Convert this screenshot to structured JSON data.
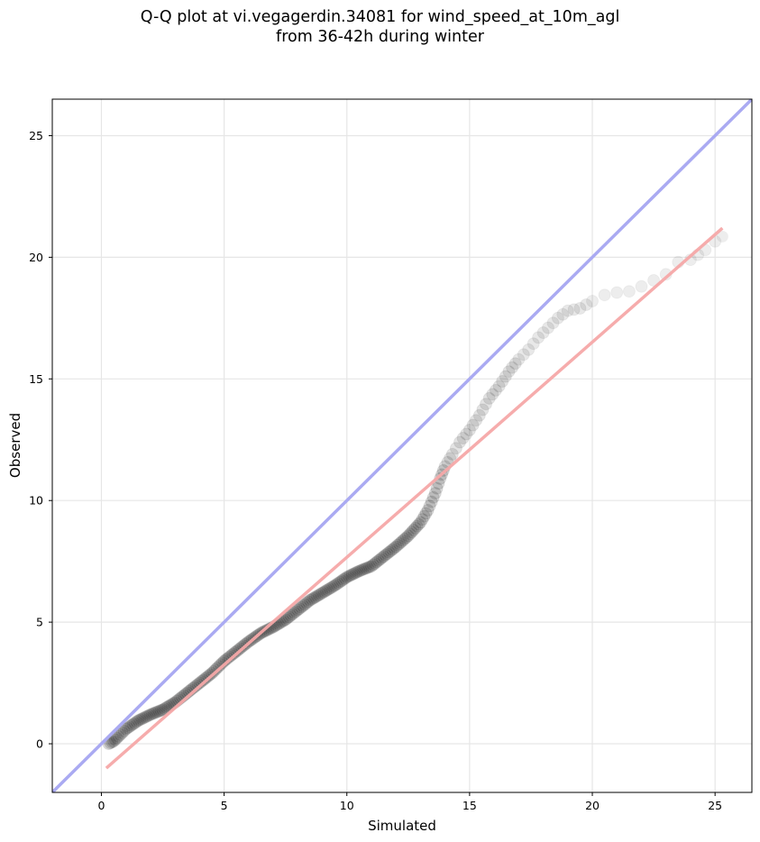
{
  "chart_data": {
    "type": "scatter",
    "title_lines": [
      "Q-Q plot at vi.vegagerdin.34081 for wind_speed_at_10m_agl",
      "from 36-42h during winter"
    ],
    "xlabel": "Simulated",
    "ylabel": "Observed",
    "xlim": [
      -2,
      26.5
    ],
    "ylim": [
      -2,
      26.5
    ],
    "xticks": [
      0,
      5,
      10,
      15,
      20,
      25
    ],
    "yticks": [
      0,
      5,
      10,
      15,
      20,
      25
    ],
    "grid": true,
    "colors": {
      "identity_line": "#aaaaf2",
      "fit_line": "#f5a8a8",
      "points": "#000000"
    },
    "identity_line": {
      "x": [
        -2,
        26.5
      ],
      "y": [
        -2,
        26.5
      ]
    },
    "fit_line": {
      "x": [
        0.2,
        25.3
      ],
      "y": [
        -1.0,
        21.2
      ]
    },
    "quantile_curve": {
      "x": [
        0.3,
        0.5,
        0.7,
        1.0,
        1.5,
        2.0,
        2.5,
        3.0,
        3.5,
        4.0,
        4.5,
        5.0,
        5.5,
        6.0,
        6.5,
        7.0,
        7.5,
        8.0,
        8.5,
        9.0,
        9.5,
        10.0,
        10.5,
        11.0,
        11.5,
        12.0,
        12.5,
        13.0,
        13.3,
        13.6,
        13.8,
        14.0,
        14.3,
        14.6,
        15.0,
        15.4,
        15.8,
        16.2,
        16.6,
        17.0,
        17.4,
        17.8,
        18.2,
        18.6,
        19.0,
        19.5,
        20.0,
        20.5,
        21.0,
        21.5,
        22.0,
        22.5,
        23.0,
        23.5,
        24.0,
        24.3,
        24.6,
        25.0,
        25.3
      ],
      "y": [
        0.0,
        0.1,
        0.3,
        0.6,
        0.95,
        1.2,
        1.4,
        1.7,
        2.1,
        2.5,
        2.9,
        3.4,
        3.8,
        4.2,
        4.55,
        4.8,
        5.1,
        5.5,
        5.9,
        6.2,
        6.5,
        6.85,
        7.1,
        7.3,
        7.7,
        8.1,
        8.55,
        9.1,
        9.6,
        10.3,
        10.9,
        11.4,
        11.9,
        12.4,
        12.9,
        13.5,
        14.2,
        14.7,
        15.3,
        15.8,
        16.2,
        16.7,
        17.1,
        17.5,
        17.8,
        17.9,
        18.2,
        18.45,
        18.55,
        18.6,
        18.8,
        19.05,
        19.3,
        19.8,
        19.9,
        20.1,
        20.3,
        20.65,
        20.85
      ]
    }
  }
}
